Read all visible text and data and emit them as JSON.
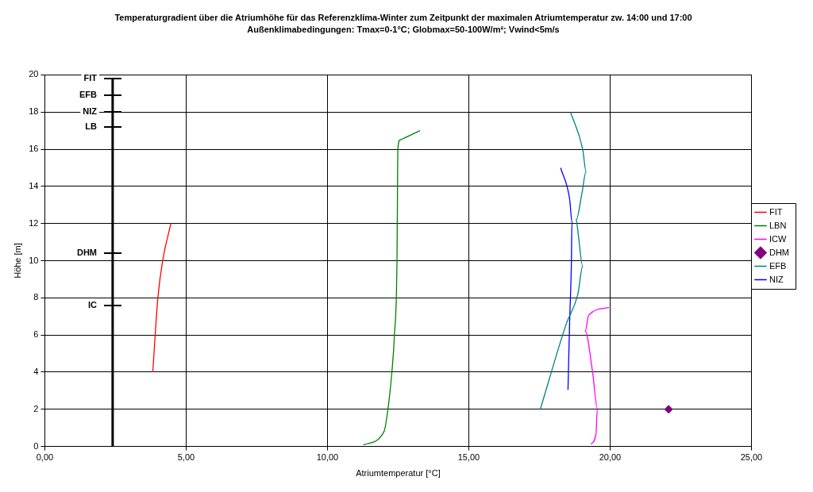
{
  "chart_data": {
    "type": "line",
    "title": "Temperaturgradient über die Atriumhöhe für das Referenzklima-Winter zum Zeitpunkt der maximalen Atriumtemperatur zw. 14:00 und 17:00",
    "subtitle": "Außenklimabedingungen: Tmax=0-1°C; Globmax=50-100W/m²; Vwind<5m/s",
    "xlabel": "Atriumtemperatur [°C]",
    "ylabel": "Höhe [m]",
    "xlim": [
      0,
      25
    ],
    "xticks": [
      {
        "value": 0,
        "label": "0,00"
      },
      {
        "value": 5,
        "label": "5,00"
      },
      {
        "value": 10,
        "label": "10,00"
      },
      {
        "value": 15,
        "label": "15,00"
      },
      {
        "value": 20,
        "label": "20,00"
      },
      {
        "value": 25,
        "label": "25,00"
      }
    ],
    "ylim": [
      0,
      20
    ],
    "yticks": [
      0,
      2,
      4,
      6,
      8,
      10,
      12,
      14,
      16,
      18,
      20
    ],
    "grid": true,
    "legend": "right",
    "marker": "none",
    "line_style": "solid",
    "series": [
      {
        "name": "FIT",
        "color": "#ff0000",
        "type": "line",
        "x": [
          3.82,
          4.0,
          4.17,
          4.46
        ],
        "values": [
          4,
          8,
          10,
          12
        ]
      },
      {
        "name": "LBN",
        "color": "#008000",
        "type": "line",
        "x": [
          11.27,
          12.0,
          12.14,
          12.28,
          12.37,
          12.46,
          12.48,
          12.49,
          12.57,
          13.27
        ],
        "values": [
          0.08,
          0.8,
          2,
          4,
          6,
          10,
          14,
          16,
          16.5,
          17
        ]
      },
      {
        "name": "ICW",
        "color": "#ff00ff",
        "type": "line",
        "x": [
          19.32,
          19.5,
          19.55,
          19.38,
          19.12,
          19.24,
          19.96
        ],
        "values": [
          0.12,
          0.67,
          2.05,
          4,
          6.2,
          7.06,
          7.47
        ]
      },
      {
        "name": "DHM",
        "color": "#800080",
        "type": "scatter",
        "marker": "diamond",
        "x": [
          22.07
        ],
        "values": [
          2
        ]
      },
      {
        "name": "EFB",
        "color": "#008080",
        "type": "line",
        "x": [
          17.53,
          18.45,
          18.86,
          19.03,
          18.86,
          18.8,
          19.0,
          19.15,
          19.03,
          18.6
        ],
        "values": [
          2,
          6.6,
          8.2,
          9.7,
          11.6,
          12.2,
          13.6,
          14.8,
          16,
          18
        ]
      },
      {
        "name": "NIZ",
        "color": "#0000ff",
        "type": "line",
        "x": [
          18.51,
          18.57,
          18.63,
          18.65,
          18.57,
          18.25
        ],
        "values": [
          3.05,
          6.8,
          9.85,
          12.1,
          13.3,
          15
        ]
      },
      {
        "color": "#000000",
        "type": "line",
        "x": [
          2.4,
          2.4
        ],
        "values": [
          0,
          19.8
        ]
      }
    ],
    "annotations": [
      {
        "text": "FIT",
        "y": 19.8
      },
      {
        "text": "EFB",
        "y": 18.9
      },
      {
        "text": "NIZ",
        "y": 18
      },
      {
        "text": "LB",
        "y": 17.2
      },
      {
        "text": "DHM",
        "y": 10.4
      },
      {
        "text": "IC",
        "y": 7.6
      }
    ]
  }
}
